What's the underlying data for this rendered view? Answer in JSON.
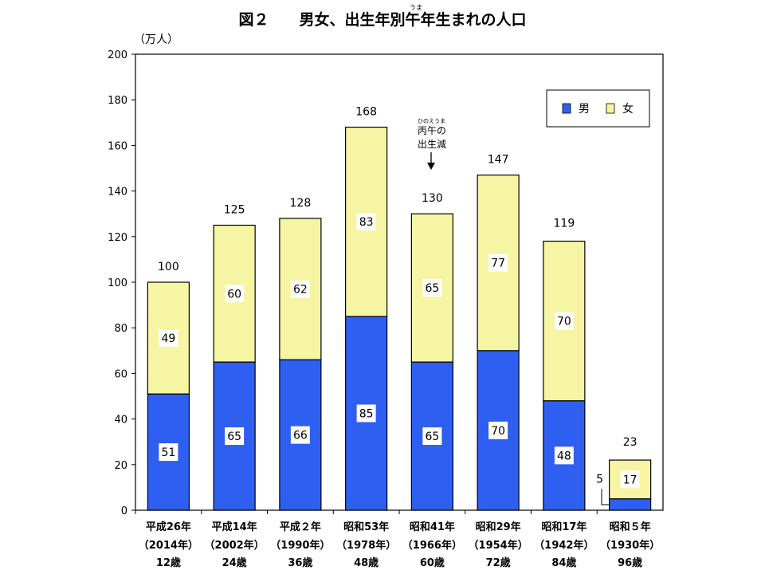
{
  "chart_data": {
    "type": "bar",
    "stacked": true,
    "title": "図２　　男女、出生年別午年生まれの人口",
    "title_ruby": "うま",
    "ylabel": "（万人）",
    "ylim": [
      0,
      200
    ],
    "yticks": [
      "0",
      "20",
      "40",
      "60",
      "80",
      "100",
      "120",
      "140",
      "160",
      "180",
      "200"
    ],
    "grid": false,
    "legend_position": "top-right",
    "categories": [
      {
        "line1": "平成26年",
        "line2": "（2014年）",
        "line3": "12歳"
      },
      {
        "line1": "平成14年",
        "line2": "（2002年）",
        "line3": "24歳"
      },
      {
        "line1": "平成２年",
        "line2": "（1990年）",
        "line3": "36歳"
      },
      {
        "line1": "昭和53年",
        "line2": "（1978年）",
        "line3": "48歳"
      },
      {
        "line1": "昭和41年",
        "line2": "（1966年）",
        "line3": "60歳"
      },
      {
        "line1": "昭和29年",
        "line2": "（1954年）",
        "line3": "72歳"
      },
      {
        "line1": "昭和17年",
        "line2": "（1942年）",
        "line3": "84歳"
      },
      {
        "line1": "昭和５年",
        "line2": "（1930年）",
        "line3": "96歳"
      }
    ],
    "series": [
      {
        "name": "男",
        "color": "#2f5ff0",
        "values": [
          51,
          65,
          66,
          85,
          65,
          70,
          48,
          5
        ]
      },
      {
        "name": "女",
        "color": "#f5f5a3",
        "values": [
          49,
          60,
          62,
          83,
          65,
          77,
          70,
          17
        ]
      }
    ],
    "totals": [
      100,
      125,
      128,
      168,
      130,
      147,
      119,
      23
    ],
    "annotation": {
      "ruby": "ひのえうま",
      "line1": "丙午の",
      "line2": "出生減"
    }
  }
}
